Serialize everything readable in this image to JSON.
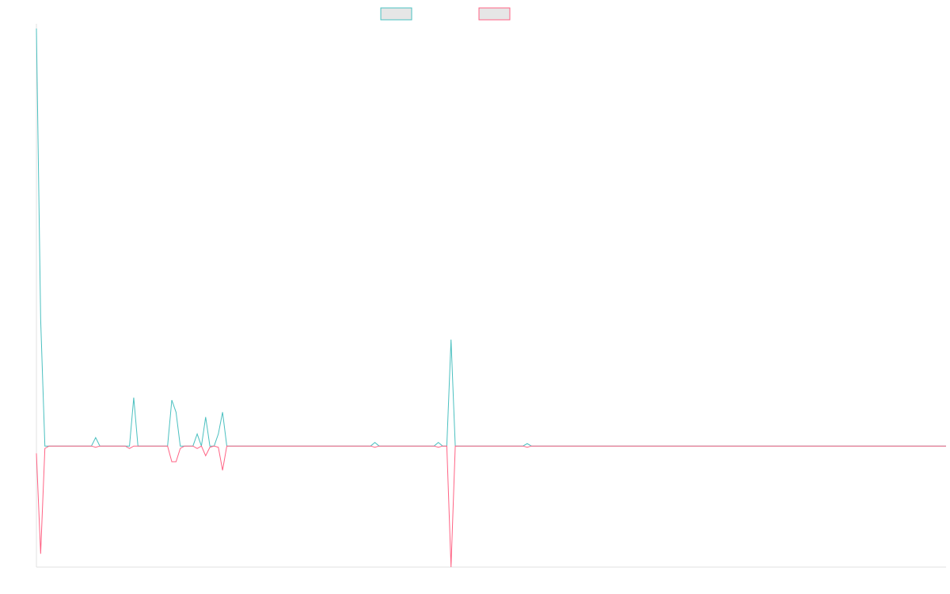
{
  "chart_data": {
    "type": "line",
    "title": "",
    "xlabel": "",
    "ylabel": "",
    "legend": {
      "position": "top",
      "labels_visible": false
    },
    "grid": false,
    "x_points": 216,
    "ylim": [
      -100,
      345
    ],
    "series": [
      {
        "color": "#4bc0c0",
        "fill": "#e6e6e6",
        "values": [
          345,
          105,
          0,
          0,
          0,
          0,
          0,
          0,
          0,
          0,
          0,
          0,
          0,
          0,
          7,
          0,
          0,
          0,
          0,
          0,
          0,
          0,
          0,
          40,
          0,
          0,
          0,
          0,
          0,
          0,
          0,
          0,
          38,
          28,
          0,
          0,
          0,
          0,
          10,
          0,
          24,
          0,
          0,
          10,
          28,
          0,
          0,
          0,
          0,
          0,
          0,
          0,
          0,
          0,
          0,
          0,
          0,
          0,
          0,
          0,
          0,
          0,
          0,
          0,
          0,
          0,
          0,
          0,
          0,
          0,
          0,
          0,
          0,
          0,
          0,
          0,
          0,
          0,
          0,
          0,
          3,
          0,
          0,
          0,
          0,
          0,
          0,
          0,
          0,
          0,
          0,
          0,
          0,
          0,
          0,
          3,
          0,
          0,
          88,
          0,
          0,
          0,
          0,
          0,
          0,
          0,
          0,
          0,
          0,
          0,
          0,
          0,
          0,
          0,
          0,
          0,
          2,
          0,
          0,
          0,
          0,
          0,
          0,
          0,
          0,
          0,
          0,
          0,
          0,
          0,
          0,
          0,
          0,
          0,
          0,
          0,
          0,
          0,
          0,
          0,
          0,
          0,
          0,
          0,
          0,
          0,
          0,
          0,
          0,
          0,
          0,
          0,
          0,
          0,
          0,
          0,
          0,
          0,
          0,
          0,
          0,
          0,
          0,
          0,
          0,
          0,
          0,
          0,
          0,
          0,
          0,
          0,
          0,
          0,
          0,
          0,
          0,
          0,
          0,
          0,
          0,
          0,
          0,
          0,
          0,
          0,
          0,
          0,
          0,
          0,
          0,
          0,
          0,
          0,
          0,
          0,
          0,
          0,
          0,
          0,
          0,
          0,
          0,
          0,
          0,
          0,
          0,
          0,
          0,
          0,
          0,
          0,
          0,
          0,
          0,
          0
        ]
      },
      {
        "color": "#ff6384",
        "fill": "#e6e6e6",
        "values": [
          -6,
          -89,
          -2,
          0,
          0,
          0,
          0,
          0,
          0,
          0,
          0,
          0,
          0,
          0,
          -1,
          0,
          0,
          0,
          0,
          0,
          0,
          0,
          -2,
          0,
          0,
          0,
          0,
          0,
          0,
          0,
          0,
          0,
          -13,
          -13,
          -2,
          0,
          0,
          0,
          -2,
          0,
          -8,
          -1,
          0,
          -1,
          -20,
          0,
          0,
          0,
          0,
          0,
          0,
          0,
          0,
          0,
          0,
          0,
          0,
          0,
          0,
          0,
          0,
          0,
          0,
          0,
          0,
          0,
          0,
          0,
          0,
          0,
          0,
          0,
          0,
          0,
          0,
          0,
          0,
          0,
          0,
          0,
          -1,
          0,
          0,
          0,
          0,
          0,
          0,
          0,
          0,
          0,
          0,
          0,
          0,
          0,
          0,
          -1,
          0,
          0,
          -100,
          0,
          0,
          0,
          0,
          0,
          0,
          0,
          0,
          0,
          0,
          0,
          0,
          0,
          0,
          0,
          0,
          0,
          -1,
          0,
          0,
          0,
          0,
          0,
          0,
          0,
          0,
          0,
          0,
          0,
          0,
          0,
          0,
          0,
          0,
          0,
          0,
          0,
          0,
          0,
          0,
          0,
          0,
          0,
          0,
          0,
          0,
          0,
          0,
          0,
          0,
          0,
          0,
          0,
          0,
          0,
          0,
          0,
          0,
          0,
          0,
          0,
          0,
          0,
          0,
          0,
          0,
          0,
          0,
          0,
          0,
          0,
          0,
          0,
          0,
          0,
          0,
          0,
          0,
          0,
          0,
          0,
          0,
          0,
          0,
          0,
          0,
          0,
          0,
          0,
          0,
          0,
          0,
          0,
          0,
          0,
          0,
          0,
          0,
          0,
          0,
          0,
          0,
          0,
          0,
          0,
          0,
          0,
          0,
          0,
          0,
          0,
          0,
          0,
          0,
          0,
          0,
          0
        ]
      }
    ]
  }
}
